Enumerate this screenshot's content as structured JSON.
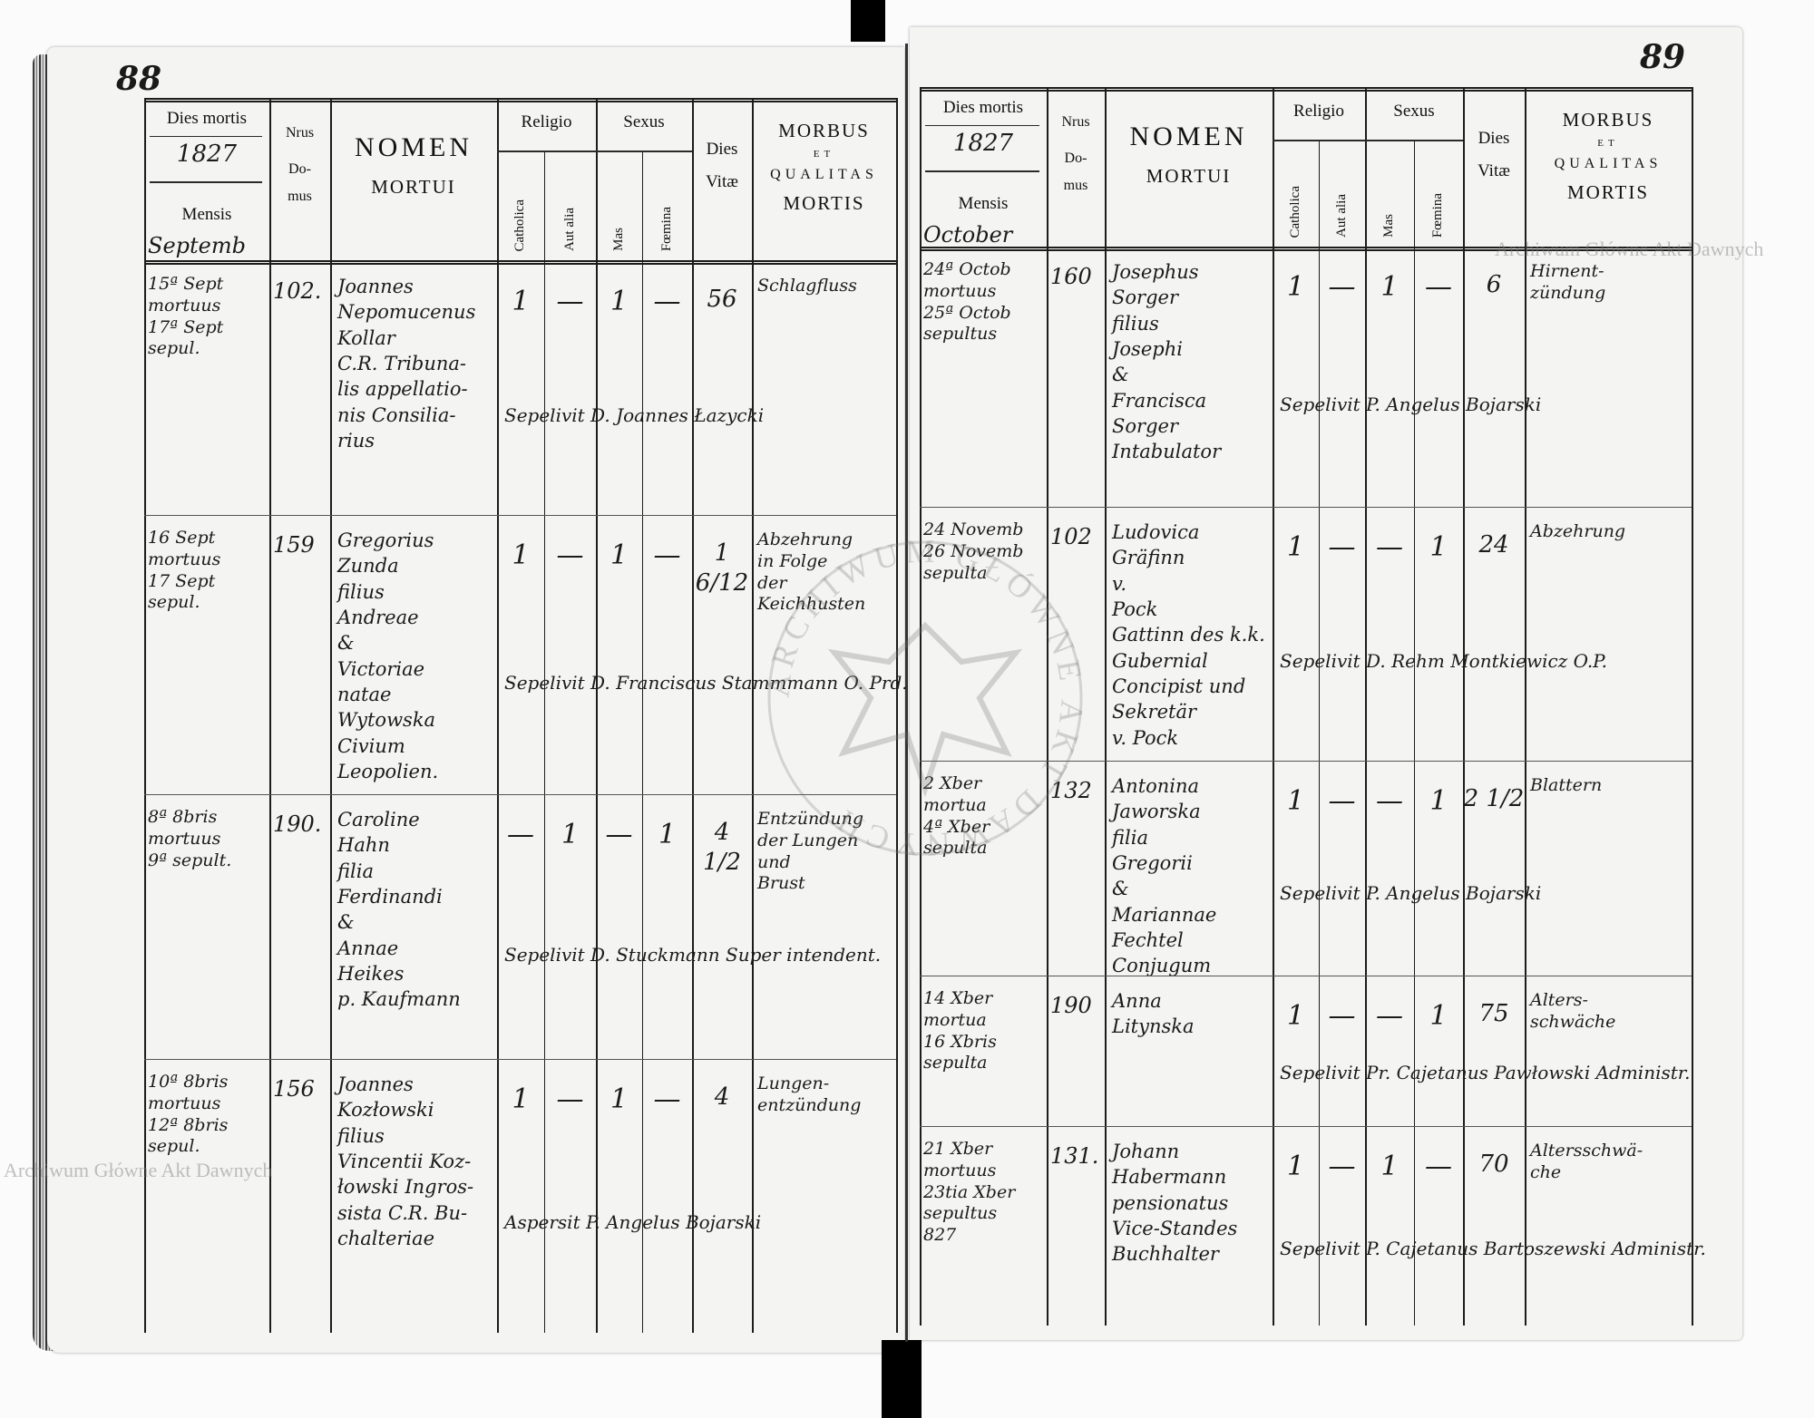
{
  "document": {
    "left_page_number": "88",
    "right_page_number": "89",
    "watermark": "Archiwum Główne Akt Dawnych",
    "seal_text": "ARCHIWUM GŁÓWNE AKT DAWNYCH"
  },
  "header": {
    "dies_mortis": "Dies mortis",
    "mensis": "Mensis",
    "nrus": "Nrus",
    "domus_1": "Do-",
    "domus_2": "mus",
    "nomen": "NOMEN",
    "mortui": "MORTUI",
    "religio": "Religio",
    "catholica": "Catholica",
    "aut_alia": "Aut alia",
    "sexus": "Sexus",
    "mas": "Mas",
    "foemina": "Fœmina",
    "dies": "Dies",
    "vitae": "Vitæ",
    "morbus": "MORBUS",
    "et": "ET",
    "qualitas": "QUALITAS",
    "mortis": "MORTIS"
  },
  "left_page": {
    "year": "1827",
    "month": "Septemb",
    "entries": [
      {
        "dies_mortis": "15ª Sept\nmortuus\n17ª Sept sepul.",
        "nrus_domus": "102.",
        "nomen": "Joannes\nNepomucenus\nKollar\nC.R. Tribuna-\nlis appellatio-\nnis Consilia-\nrius",
        "catholica": "1",
        "aut_alia": "—",
        "mas": "1",
        "foemina": "—",
        "dies_vitae": "56",
        "morbus": "Schlagfluss",
        "sepelivit": "Sepelivit D. Joannes Łazycki"
      },
      {
        "dies_mortis": "16 Sept\nmortuus\n17 Sept\nsepul.",
        "nrus_domus": "159",
        "nomen": "Gregorius\nZunda\nfilius\nAndreae\n&\nVictoriae\nnatae\nWytowska\nCivium\nLeopolien.",
        "catholica": "1",
        "aut_alia": "—",
        "mas": "1",
        "foemina": "—",
        "dies_vitae": "1 6/12",
        "morbus": "Abzehrung\nin Folge\nder\nKeichhusten",
        "sepelivit": "Sepelivit D. Franciscus Stammmann O. Prd."
      },
      {
        "dies_mortis": "8ª 8bris\nmortuus\n9ª sepult.",
        "nrus_domus": "190.",
        "nomen": "Caroline\nHahn\nfilia\nFerdinandi\n&\nAnnae\nHeikes\np. Kaufmann",
        "catholica": "—",
        "aut_alia": "1",
        "mas": "—",
        "foemina": "1",
        "dies_vitae": "4 1/2",
        "morbus": "Entzündung\nder Lungen\nund\nBrust",
        "sepelivit": "Sepelivit D. Stuckmann Super intendent."
      },
      {
        "dies_mortis": "10ª 8bris\nmortuus\n12ª 8bris sepul.",
        "nrus_domus": "156",
        "nomen": "Joannes\nKozłowski\nfilius\nVincentii Koz-\nłowski Ingros-\nsista C.R. Bu-\nchalteriae",
        "catholica": "1",
        "aut_alia": "—",
        "mas": "1",
        "foemina": "—",
        "dies_vitae": "4",
        "morbus": "Lungen-\nentzündung",
        "sepelivit": "Aspersit P. Angelus Bojarski"
      }
    ]
  },
  "right_page": {
    "year": "1827",
    "month": "October",
    "entries": [
      {
        "dies_mortis": "24ª Octob\nmortuus\n25ª Octob\nsepultus",
        "nrus_domus": "160",
        "nomen": "Josephus\nSorger\nfilius\nJosephi\n&\nFrancisca\nSorger\nIntabulator",
        "catholica": "1",
        "aut_alia": "—",
        "mas": "1",
        "foemina": "—",
        "dies_vitae": "6",
        "morbus": "Hirnent-\nzündung",
        "sepelivit": "Sepelivit P. Angelus Bojarski"
      },
      {
        "dies_mortis": "24 Novemb\n26 Novemb\nsepulta",
        "nrus_domus": "102",
        "nomen": "Ludovica\nGräfinn\nv.\nPock\nGattinn des k.k.\nGubernial\nConcipist und\nSekretär\nv. Pock",
        "catholica": "1",
        "aut_alia": "—",
        "mas": "—",
        "foemina": "1",
        "dies_vitae": "24",
        "morbus": "Abzehrung",
        "sepelivit": "Sepelivit D. Rehm Montkiewicz O.P."
      },
      {
        "dies_mortis": "2 Xber\nmortua\n4ª Xber\nsepulta",
        "nrus_domus": "132",
        "nomen": "Antonina\nJaworska\nfilia\nGregorii\n&\nMariannae\nFechtel\nConjugum",
        "catholica": "1",
        "aut_alia": "—",
        "mas": "—",
        "foemina": "1",
        "dies_vitae": "2 1/2",
        "morbus": "Blattern",
        "sepelivit": "Sepelivit P. Angelus Bojarski"
      },
      {
        "dies_mortis": "14 Xber\nmortua\n16 Xbris\nsepulta",
        "nrus_domus": "190",
        "nomen": "Anna\nLitynska",
        "catholica": "1",
        "aut_alia": "—",
        "mas": "—",
        "foemina": "1",
        "dies_vitae": "75",
        "morbus": "Alters-\nschwäche",
        "sepelivit": "Sepelivit Pr. Cajetanus Pawłowski Administr."
      },
      {
        "dies_mortis": "21 Xber\nmortuus\n23tia Xber\nsepultus\n827",
        "nrus_domus": "131.",
        "nomen": "Johann\nHabermann\npensionatus\nVice-Standes\nBuchhalter",
        "catholica": "1",
        "aut_alia": "—",
        "mas": "1",
        "foemina": "—",
        "dies_vitae": "70",
        "morbus": "Altersschwä-\nche",
        "sepelivit": "Sepelivit P. Cajetanus Bartoszewski Administr."
      }
    ]
  }
}
